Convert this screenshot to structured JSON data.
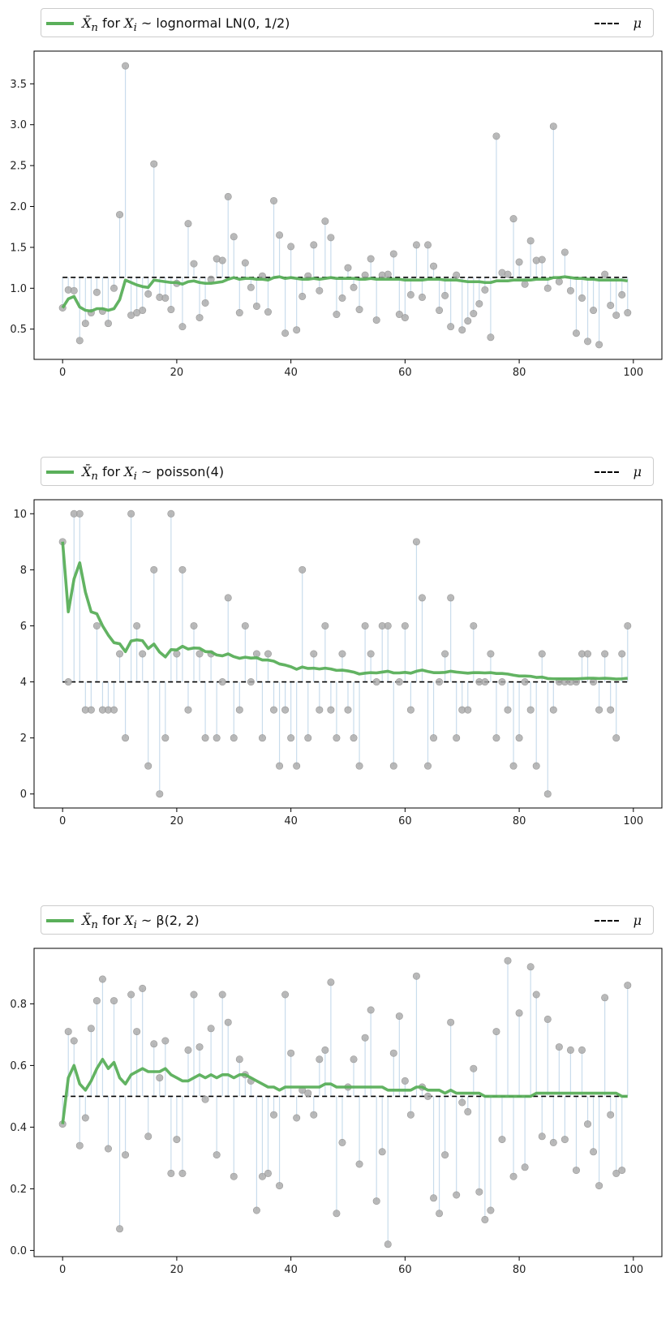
{
  "chart_data": [
    {
      "type": "scatter",
      "legend": {
        "series_label_prefix": "for",
        "series_label": "lognormal LN(0, 1/2)",
        "mu_label": "μ"
      },
      "mu": 1.133,
      "xlim": [
        -5,
        105
      ],
      "ylim": [
        0.13,
        3.9
      ],
      "xticks": [
        0,
        20,
        40,
        60,
        80,
        100
      ],
      "yticks": [
        0.5,
        1.0,
        1.5,
        2.0,
        2.5,
        3.0,
        3.5
      ],
      "ytick_labels": [
        "0.5",
        "1.0",
        "1.5",
        "2.0",
        "2.5",
        "3.0",
        "3.5"
      ],
      "x": [
        0,
        1,
        2,
        3,
        4,
        5,
        6,
        7,
        8,
        9,
        10,
        11,
        12,
        13,
        14,
        15,
        16,
        17,
        18,
        19,
        20,
        21,
        22,
        23,
        24,
        25,
        26,
        27,
        28,
        29,
        30,
        31,
        32,
        33,
        34,
        35,
        36,
        37,
        38,
        39,
        40,
        41,
        42,
        43,
        44,
        45,
        46,
        47,
        48,
        49,
        50,
        51,
        52,
        53,
        54,
        55,
        56,
        57,
        58,
        59,
        60,
        61,
        62,
        63,
        64,
        65,
        66,
        67,
        68,
        69,
        70,
        71,
        72,
        73,
        74,
        75,
        76,
        77,
        78,
        79,
        80,
        81,
        82,
        83,
        84,
        85,
        86,
        87,
        88,
        89,
        90,
        91,
        92,
        93,
        94,
        95,
        96,
        97,
        98,
        99
      ],
      "samples": [
        0.76,
        0.98,
        0.97,
        0.36,
        0.57,
        0.7,
        0.95,
        0.72,
        0.57,
        1.0,
        1.9,
        3.72,
        0.67,
        0.7,
        0.73,
        0.93,
        2.52,
        0.89,
        0.88,
        0.74,
        1.06,
        0.53,
        1.79,
        1.3,
        0.64,
        0.82,
        1.11,
        1.36,
        1.34,
        2.12,
        1.63,
        0.7,
        1.31,
        1.01,
        0.78,
        1.15,
        0.71,
        2.07,
        1.65,
        0.45,
        1.51,
        0.49,
        0.9,
        1.15,
        1.53,
        0.97,
        1.82,
        1.62,
        0.68,
        0.88,
        1.25,
        1.01,
        0.74,
        1.16,
        1.36,
        0.61,
        1.16,
        1.17,
        1.42,
        0.68,
        0.64,
        0.92,
        1.53,
        0.89,
        1.53,
        1.27,
        0.73,
        0.91,
        0.53,
        1.16,
        0.49,
        0.6,
        0.69,
        0.81,
        0.98,
        0.4,
        2.86,
        1.19,
        1.17,
        1.85,
        1.32,
        1.05,
        1.58,
        1.34,
        1.35,
        1.0,
        2.98,
        1.08,
        1.44,
        0.97,
        0.45,
        0.88,
        0.35,
        0.73,
        0.31,
        1.17,
        0.79,
        0.67,
        0.92,
        0.7
      ],
      "running_mean": [
        0.76,
        0.87,
        0.9,
        0.77,
        0.73,
        0.72,
        0.75,
        0.75,
        0.73,
        0.75,
        0.86,
        1.1,
        1.07,
        1.04,
        1.02,
        1.01,
        1.1,
        1.09,
        1.08,
        1.07,
        1.07,
        1.05,
        1.08,
        1.09,
        1.07,
        1.06,
        1.06,
        1.07,
        1.08,
        1.11,
        1.13,
        1.11,
        1.12,
        1.12,
        1.11,
        1.11,
        1.1,
        1.13,
        1.14,
        1.12,
        1.13,
        1.12,
        1.11,
        1.11,
        1.12,
        1.11,
        1.12,
        1.13,
        1.12,
        1.12,
        1.12,
        1.12,
        1.11,
        1.11,
        1.12,
        1.11,
        1.11,
        1.11,
        1.11,
        1.11,
        1.1,
        1.1,
        1.1,
        1.1,
        1.11,
        1.11,
        1.11,
        1.1,
        1.1,
        1.1,
        1.09,
        1.08,
        1.08,
        1.08,
        1.07,
        1.07,
        1.09,
        1.09,
        1.09,
        1.1,
        1.1,
        1.1,
        1.1,
        1.11,
        1.11,
        1.11,
        1.13,
        1.13,
        1.14,
        1.13,
        1.12,
        1.12,
        1.11,
        1.11,
        1.1,
        1.1,
        1.1,
        1.1,
        1.1,
        1.09
      ]
    },
    {
      "type": "scatter",
      "legend": {
        "series_label_prefix": "for",
        "series_label": "poisson(4)",
        "mu_label": "μ"
      },
      "mu": 4,
      "xlim": [
        -5,
        105
      ],
      "ylim": [
        -0.5,
        10.5
      ],
      "xticks": [
        0,
        20,
        40,
        60,
        80,
        100
      ],
      "yticks": [
        0,
        2,
        4,
        6,
        8,
        10
      ],
      "ytick_labels": [
        "0",
        "2",
        "4",
        "6",
        "8",
        "10"
      ],
      "x": [
        0,
        1,
        2,
        3,
        4,
        5,
        6,
        7,
        8,
        9,
        10,
        11,
        12,
        13,
        14,
        15,
        16,
        17,
        18,
        19,
        20,
        21,
        22,
        23,
        24,
        25,
        26,
        27,
        28,
        29,
        30,
        31,
        32,
        33,
        34,
        35,
        36,
        37,
        38,
        39,
        40,
        41,
        42,
        43,
        44,
        45,
        46,
        47,
        48,
        49,
        50,
        51,
        52,
        53,
        54,
        55,
        56,
        57,
        58,
        59,
        60,
        61,
        62,
        63,
        64,
        65,
        66,
        67,
        68,
        69,
        70,
        71,
        72,
        73,
        74,
        75,
        76,
        77,
        78,
        79,
        80,
        81,
        82,
        83,
        84,
        85,
        86,
        87,
        88,
        89,
        90,
        91,
        92,
        93,
        94,
        95,
        96,
        97,
        98,
        99
      ],
      "samples": [
        9,
        4,
        10,
        10,
        3,
        3,
        6,
        3,
        3,
        3,
        5,
        2,
        10,
        6,
        5,
        1,
        8,
        0,
        2,
        10,
        5,
        8,
        3,
        6,
        5,
        2,
        5,
        2,
        4,
        7,
        2,
        3,
        6,
        4,
        5,
        2,
        5,
        3,
        1,
        3,
        2,
        1,
        8,
        2,
        5,
        3,
        6,
        3,
        2,
        5,
        3,
        2,
        1,
        6,
        5,
        4,
        6,
        6,
        1,
        4,
        6,
        3,
        9,
        7,
        1,
        2,
        4,
        5,
        7,
        2,
        3,
        3,
        6,
        4,
        4,
        5,
        2,
        4,
        3,
        1,
        2,
        4,
        3,
        1,
        5,
        0,
        3,
        4,
        4,
        4,
        4,
        5,
        5,
        4,
        3,
        5,
        3,
        2,
        5,
        6
      ],
      "running_mean": [
        9.0,
        6.5,
        7.67,
        8.25,
        7.2,
        6.5,
        6.43,
        6.0,
        5.67,
        5.4,
        5.36,
        5.08,
        5.46,
        5.5,
        5.47,
        5.19,
        5.35,
        5.06,
        4.89,
        5.15,
        5.14,
        5.27,
        5.17,
        5.21,
        5.2,
        5.08,
        5.07,
        4.96,
        4.93,
        5.0,
        4.9,
        4.84,
        4.88,
        4.85,
        4.86,
        4.78,
        4.78,
        4.74,
        4.64,
        4.6,
        4.54,
        4.45,
        4.53,
        4.48,
        4.49,
        4.46,
        4.49,
        4.46,
        4.41,
        4.42,
        4.39,
        4.35,
        4.28,
        4.31,
        4.33,
        4.32,
        4.35,
        4.38,
        4.32,
        4.32,
        4.34,
        4.31,
        4.38,
        4.42,
        4.37,
        4.33,
        4.33,
        4.34,
        4.38,
        4.35,
        4.33,
        4.31,
        4.33,
        4.33,
        4.32,
        4.33,
        4.3,
        4.3,
        4.28,
        4.24,
        4.21,
        4.21,
        4.2,
        4.16,
        4.17,
        4.12,
        4.11,
        4.11,
        4.11,
        4.11,
        4.11,
        4.12,
        4.13,
        4.13,
        4.12,
        4.13,
        4.12,
        4.1,
        4.11,
        4.13
      ]
    },
    {
      "type": "scatter",
      "legend": {
        "series_label_prefix": "for",
        "series_label": "β(2, 2)",
        "mu_label": "μ"
      },
      "mu": 0.5,
      "xlim": [
        -5,
        105
      ],
      "ylim": [
        -0.02,
        0.98
      ],
      "xticks": [
        0,
        20,
        40,
        60,
        80,
        100
      ],
      "yticks": [
        0.0,
        0.2,
        0.4,
        0.6,
        0.8
      ],
      "ytick_labels": [
        "0.0",
        "0.2",
        "0.4",
        "0.6",
        "0.8"
      ],
      "x": [
        0,
        1,
        2,
        3,
        4,
        5,
        6,
        7,
        8,
        9,
        10,
        11,
        12,
        13,
        14,
        15,
        16,
        17,
        18,
        19,
        20,
        21,
        22,
        23,
        24,
        25,
        26,
        27,
        28,
        29,
        30,
        31,
        32,
        33,
        34,
        35,
        36,
        37,
        38,
        39,
        40,
        41,
        42,
        43,
        44,
        45,
        46,
        47,
        48,
        49,
        50,
        51,
        52,
        53,
        54,
        55,
        56,
        57,
        58,
        59,
        60,
        61,
        62,
        63,
        64,
        65,
        66,
        67,
        68,
        69,
        70,
        71,
        72,
        73,
        74,
        75,
        76,
        77,
        78,
        79,
        80,
        81,
        82,
        83,
        84,
        85,
        86,
        87,
        88,
        89,
        90,
        91,
        92,
        93,
        94,
        95,
        96,
        97,
        98,
        99
      ],
      "samples": [
        0.41,
        0.71,
        0.68,
        0.34,
        0.43,
        0.72,
        0.81,
        0.88,
        0.33,
        0.81,
        0.07,
        0.31,
        0.83,
        0.71,
        0.85,
        0.37,
        0.67,
        0.56,
        0.68,
        0.25,
        0.36,
        0.25,
        0.65,
        0.83,
        0.66,
        0.49,
        0.72,
        0.31,
        0.83,
        0.74,
        0.24,
        0.62,
        0.57,
        0.55,
        0.13,
        0.24,
        0.25,
        0.44,
        0.21,
        0.83,
        0.64,
        0.43,
        0.52,
        0.51,
        0.44,
        0.62,
        0.65,
        0.87,
        0.12,
        0.35,
        0.53,
        0.62,
        0.28,
        0.69,
        0.78,
        0.16,
        0.32,
        0.02,
        0.64,
        0.76,
        0.55,
        0.44,
        0.89,
        0.53,
        0.5,
        0.17,
        0.12,
        0.31,
        0.74,
        0.18,
        0.48,
        0.45,
        0.59,
        0.19,
        0.1,
        0.13,
        0.71,
        0.36,
        0.94,
        0.24,
        0.77,
        0.27,
        0.92,
        0.83,
        0.37,
        0.75,
        0.35,
        0.66,
        0.36,
        0.65,
        0.26,
        0.65,
        0.41,
        0.32,
        0.21,
        0.82,
        0.44,
        0.25,
        0.26,
        0.86
      ],
      "running_mean": [
        0.41,
        0.56,
        0.6,
        0.54,
        0.52,
        0.55,
        0.59,
        0.62,
        0.59,
        0.61,
        0.56,
        0.54,
        0.57,
        0.58,
        0.59,
        0.58,
        0.58,
        0.58,
        0.59,
        0.57,
        0.56,
        0.55,
        0.55,
        0.56,
        0.57,
        0.56,
        0.57,
        0.56,
        0.57,
        0.57,
        0.56,
        0.57,
        0.57,
        0.56,
        0.55,
        0.54,
        0.53,
        0.53,
        0.52,
        0.53,
        0.53,
        0.53,
        0.53,
        0.53,
        0.53,
        0.53,
        0.54,
        0.54,
        0.53,
        0.53,
        0.53,
        0.53,
        0.53,
        0.53,
        0.53,
        0.53,
        0.53,
        0.52,
        0.52,
        0.52,
        0.52,
        0.52,
        0.53,
        0.53,
        0.52,
        0.52,
        0.52,
        0.51,
        0.52,
        0.51,
        0.51,
        0.51,
        0.51,
        0.51,
        0.5,
        0.5,
        0.5,
        0.5,
        0.5,
        0.5,
        0.5,
        0.5,
        0.5,
        0.51,
        0.51,
        0.51,
        0.51,
        0.51,
        0.51,
        0.51,
        0.51,
        0.51,
        0.51,
        0.51,
        0.51,
        0.51,
        0.51,
        0.51,
        0.5,
        0.5
      ]
    }
  ],
  "colors": {
    "mean_line": "#5aaf5a",
    "samples": "#a8a8a8",
    "stems": "#c9dcec",
    "mu_line": "#000000"
  }
}
